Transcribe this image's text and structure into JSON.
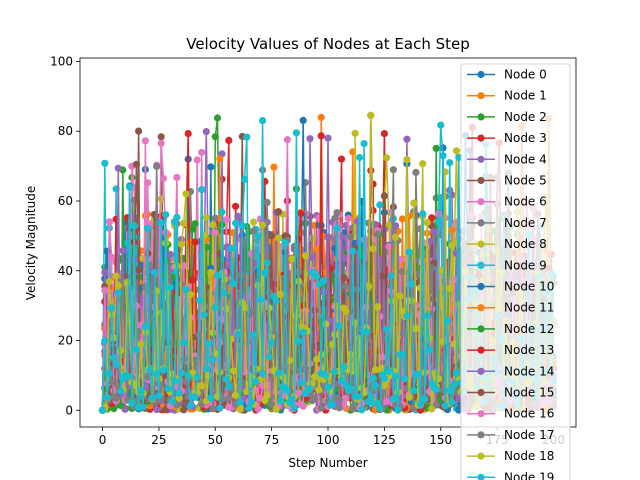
{
  "chart_data": {
    "type": "line",
    "title": "Velocity Values of Nodes at Each Step",
    "xlabel": "Step Number",
    "ylabel": "Velocity Magnitude",
    "xlim": [
      -10,
      210
    ],
    "ylim": [
      -4.8,
      101
    ],
    "xticks": [
      0,
      25,
      50,
      75,
      100,
      125,
      150,
      175,
      200
    ],
    "yticks": [
      0,
      20,
      40,
      60,
      80,
      100
    ],
    "grid": false,
    "legend_position": "right",
    "marker": "circle",
    "steps": 201,
    "series": [
      {
        "name": "Node 0",
        "color": "#1f77b4"
      },
      {
        "name": "Node 1",
        "color": "#ff7f0e"
      },
      {
        "name": "Node 2",
        "color": "#2ca02c"
      },
      {
        "name": "Node 3",
        "color": "#d62728"
      },
      {
        "name": "Node 4",
        "color": "#9467bd"
      },
      {
        "name": "Node 5",
        "color": "#8c564b"
      },
      {
        "name": "Node 6",
        "color": "#e377c2"
      },
      {
        "name": "Node 7",
        "color": "#7f7f7f"
      },
      {
        "name": "Node 8",
        "color": "#bcbd22"
      },
      {
        "name": "Node 9",
        "color": "#17becf"
      },
      {
        "name": "Node 10",
        "color": "#1f77b4"
      },
      {
        "name": "Node 11",
        "color": "#ff7f0e"
      },
      {
        "name": "Node 12",
        "color": "#2ca02c"
      },
      {
        "name": "Node 13",
        "color": "#d62728"
      },
      {
        "name": "Node 14",
        "color": "#9467bd"
      },
      {
        "name": "Node 15",
        "color": "#8c564b"
      },
      {
        "name": "Node 16",
        "color": "#e377c2"
      },
      {
        "name": "Node 17",
        "color": "#7f7f7f"
      },
      {
        "name": "Node 18",
        "color": "#bcbd22"
      },
      {
        "name": "Node 19",
        "color": "#17becf"
      }
    ]
  }
}
